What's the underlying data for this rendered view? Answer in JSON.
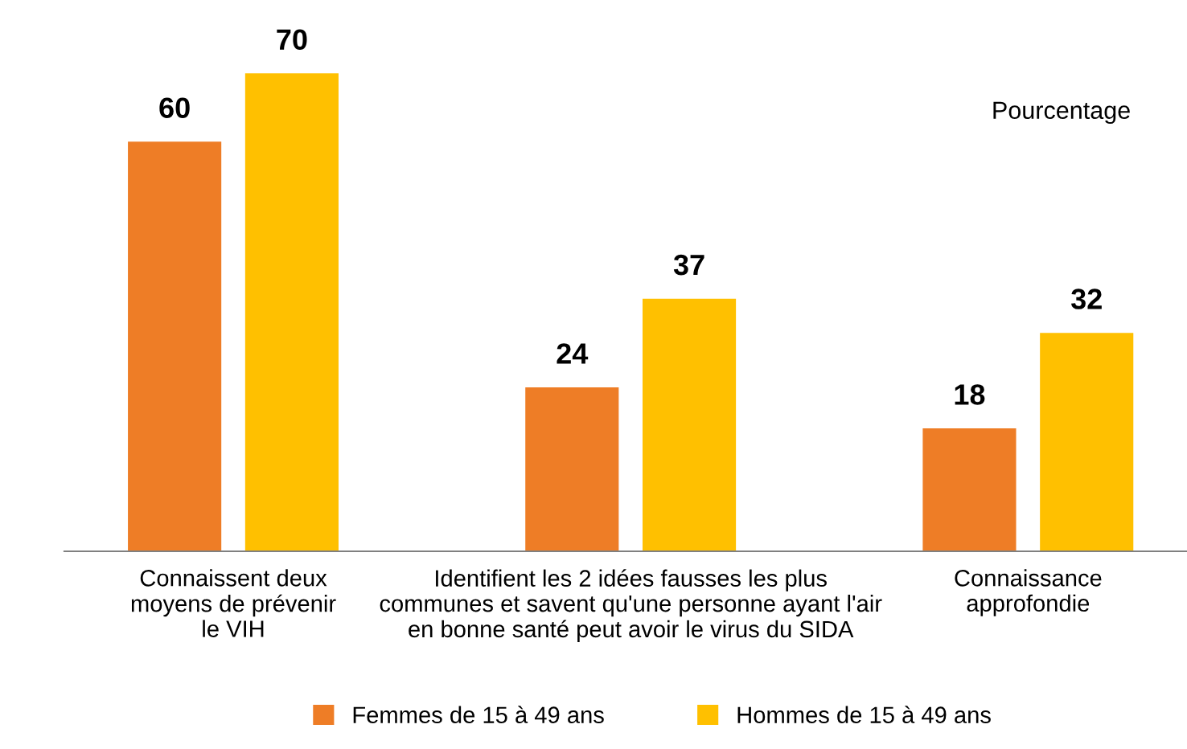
{
  "chart_data": {
    "type": "bar",
    "categories": [
      "Connaissent deux\nmoyens de prévenir\nle VIH",
      "Identifient les 2 idées fausses les plus\ncommunes et savent qu'une personne ayant l'air\nen bonne santé peut avoir le virus du SIDA",
      "Connaissance\napprofondie"
    ],
    "series": [
      {
        "name": "Femmes de 15 à 49 ans",
        "color": "#ee7d26",
        "values": [
          60,
          24,
          18
        ]
      },
      {
        "name": "Hommes de 15 à 49 ans",
        "color": "#ffc000",
        "values": [
          70,
          37,
          32
        ]
      }
    ],
    "data_labels": true,
    "annotations": [
      "Pourcentage"
    ],
    "grid": false,
    "legend": "bottom"
  }
}
